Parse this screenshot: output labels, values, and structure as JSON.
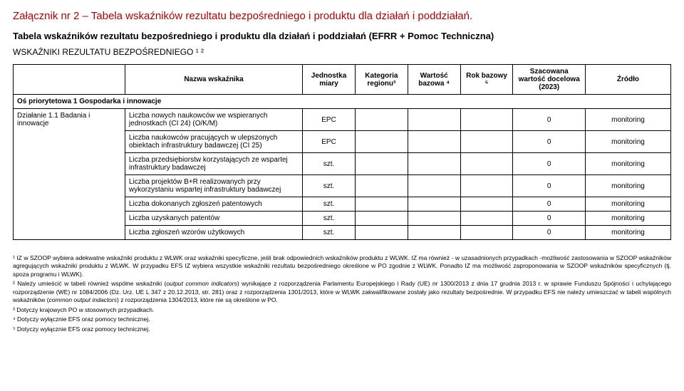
{
  "attachment_title": "Załącznik nr 2 – Tabela wskaźników rezultatu bezpośredniego i produktu dla działań i poddziałań.",
  "section_title": "Tabela wskaźników rezultatu bezpośredniego i produktu dla działań i poddziałań (EFRR + Pomoc Techniczna)",
  "subsection_title": "WSKAŹNIKI REZULTATU BEZPOŚREDNIEGO ¹ ²",
  "columns": {
    "c0": "",
    "c1": "Nazwa wskaźnika",
    "c2": "Jednostka miary",
    "c3": "Kategoria regionu³",
    "c4": "Wartość bazowa ⁴",
    "c5": "Rok bazowy ⁵",
    "c6": "Szacowana wartość docelowa (2023)",
    "c7": "Źródło"
  },
  "axis_row": "Oś priorytetowa 1 Gospodarka i innowacje",
  "action_label": "Działanie 1.1 Badania i innowacje",
  "rows": [
    {
      "name": "Liczba nowych naukowców we wspieranych jednostkach (CI 24) (O/K/M)",
      "unit": "EPC",
      "region": "",
      "base_val": "",
      "base_year": "",
      "target": "0",
      "source": "monitoring"
    },
    {
      "name": "Liczba naukowców pracujących w ulepszonych obiektach infrastruktury badawczej (CI 25)",
      "unit": "EPC",
      "region": "",
      "base_val": "",
      "base_year": "",
      "target": "0",
      "source": "monitoring"
    },
    {
      "name": "Liczba przedsiębiorstw korzystających ze wspartej infrastruktury badawczej",
      "unit": "szt.",
      "region": "",
      "base_val": "",
      "base_year": "",
      "target": "0",
      "source": "monitoring"
    },
    {
      "name": "Liczba projektów B+R realizowanych przy wykorzystaniu wspartej infrastruktury badawczej",
      "unit": "szt.",
      "region": "",
      "base_val": "",
      "base_year": "",
      "target": "0",
      "source": "monitoring"
    },
    {
      "name": "Liczba dokonanych zgłoszeń patentowych",
      "unit": "szt.",
      "region": "",
      "base_val": "",
      "base_year": "",
      "target": "0",
      "source": "monitoring"
    },
    {
      "name": "Liczba uzyskanych patentów",
      "unit": "szt.",
      "region": "",
      "base_val": "",
      "base_year": "",
      "target": "0",
      "source": "monitoring"
    },
    {
      "name": "Liczba zgłoszeń wzorów użytkowych",
      "unit": "szt.",
      "region": "",
      "base_val": "",
      "base_year": "",
      "target": "0",
      "source": "monitoring"
    }
  ],
  "footnotes": {
    "f1": "¹ IZ w SZOOP wybiera adekwatne wskaźniki produktu z WLWK oraz wskaźniki specyficzne, jeśli brak odpowiednich wskaźników produktu z WLWK. IZ ma również - w uzasadnionych przypadkach -możliwość zastosowania w SZOOP wskaźników agregujących wskaźniki produktu z WLWK. W przypadku EFS IZ wybiera wszystkie wskaźniki rezultatu bezpośredniego określone w PO zgodnie z WLWK. Ponadto IZ ma możliwość zaproponowania w SZOOP wskaźników specyficznych (tj. spoza programu i WLWK).",
    "f2_a": "² Należy umieścić w tabeli również wspólne wskaźniki (",
    "f2_b": "output common indicators",
    "f2_c": ") wynikające z rozporządzenia Parlamentu Europejskiego i Rady (UE) nr 1300/2013 z dnia 17 grudnia 2013 r. w sprawie Funduszu Spójności i uchylającego rozporządzenie (WE) nr 1084/2006 (Dz. Urz. UE L 347 z 20.12.2013, str. 281) oraz z rozporządzenia 1301/2013, które w WLWK zakwalifikowane zostały jako rezultaty bezpośrednie. W przypadku EFS nie należy umieszczać w tabeli wspólnych wskaźników (",
    "f2_d": "common output indactors",
    "f2_e": ") z rozporządzenia 1304/2013, które nie są określone w PO.",
    "f3": "³ Dotyczy krajowych PO w stosownych przypadkach.",
    "f4": "⁴ Dotyczy wyłącznie EFS oraz pomocy technicznej.",
    "f5": "⁵ Dotyczy wyłącznie EFS oraz pomocy technicznej."
  },
  "col_widths": [
    "17%",
    "27%",
    "8%",
    "8%",
    "8%",
    "8%",
    "11%",
    "13%"
  ]
}
